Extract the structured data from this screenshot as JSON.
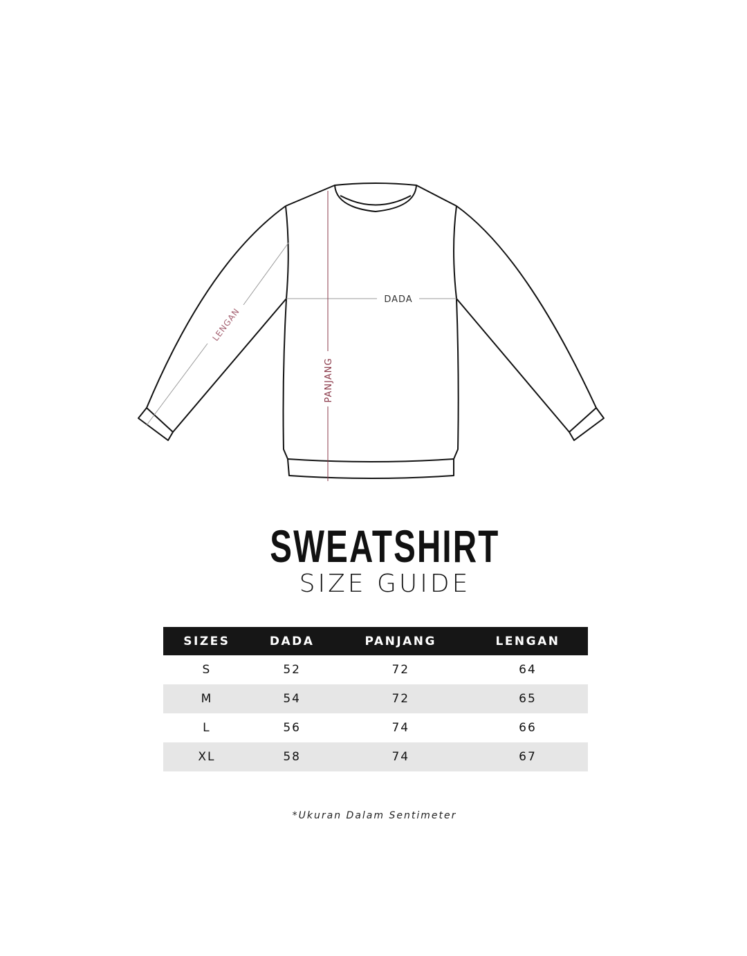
{
  "illustration": {
    "labels": {
      "chest": "DADA",
      "length": "PANJANG",
      "sleeve": "LENGAN"
    },
    "colors": {
      "outline": "#111111",
      "measure_line": "#9a9a9a",
      "accent_label": "#8b3a4a"
    }
  },
  "title": "SWEATSHIRT",
  "subtitle": "SIZE GUIDE",
  "table": {
    "headers": [
      "SIZES",
      "DADA",
      "PANJANG",
      "LENGAN"
    ],
    "rows": [
      [
        "S",
        "52",
        "72",
        "64"
      ],
      [
        "M",
        "54",
        "72",
        "65"
      ],
      [
        "L",
        "56",
        "74",
        "66"
      ],
      [
        "XL",
        "58",
        "74",
        "67"
      ]
    ]
  },
  "footnote": "*Ukuran Dalam Sentimeter"
}
